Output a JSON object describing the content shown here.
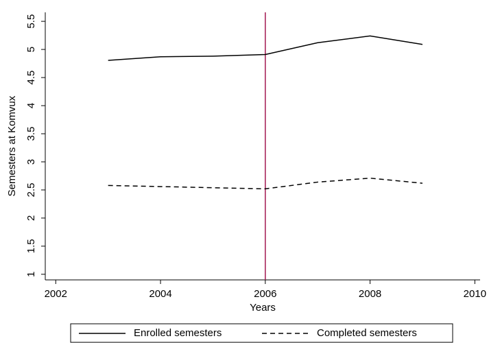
{
  "chart_data": {
    "type": "line",
    "x_label": "Years",
    "y_label": "Semesters at Komvux",
    "x": [
      2003,
      2004,
      2005,
      2006,
      2007,
      2008,
      2009
    ],
    "series": [
      {
        "name": "Enrolled semesters",
        "color": "#000000",
        "style": "solid",
        "values": [
          4.805,
          4.87,
          4.88,
          4.91,
          5.12,
          5.24,
          5.09
        ]
      },
      {
        "name": "Completed semesters",
        "color": "#000000",
        "style": "dashed",
        "values": [
          2.58,
          2.56,
          2.54,
          2.52,
          2.64,
          2.71,
          2.62
        ]
      }
    ],
    "xlim": [
      2001.8,
      2010.1
    ],
    "xticks": [
      2002,
      2004,
      2006,
      2008,
      2010
    ],
    "ylim": [
      0.9,
      5.66
    ],
    "yticks": [
      1,
      1.5,
      2,
      2.5,
      3,
      3.5,
      4,
      4.5,
      5,
      5.5
    ],
    "vline": 2006,
    "vline_color": "#a3174f",
    "legend": "bottom"
  }
}
